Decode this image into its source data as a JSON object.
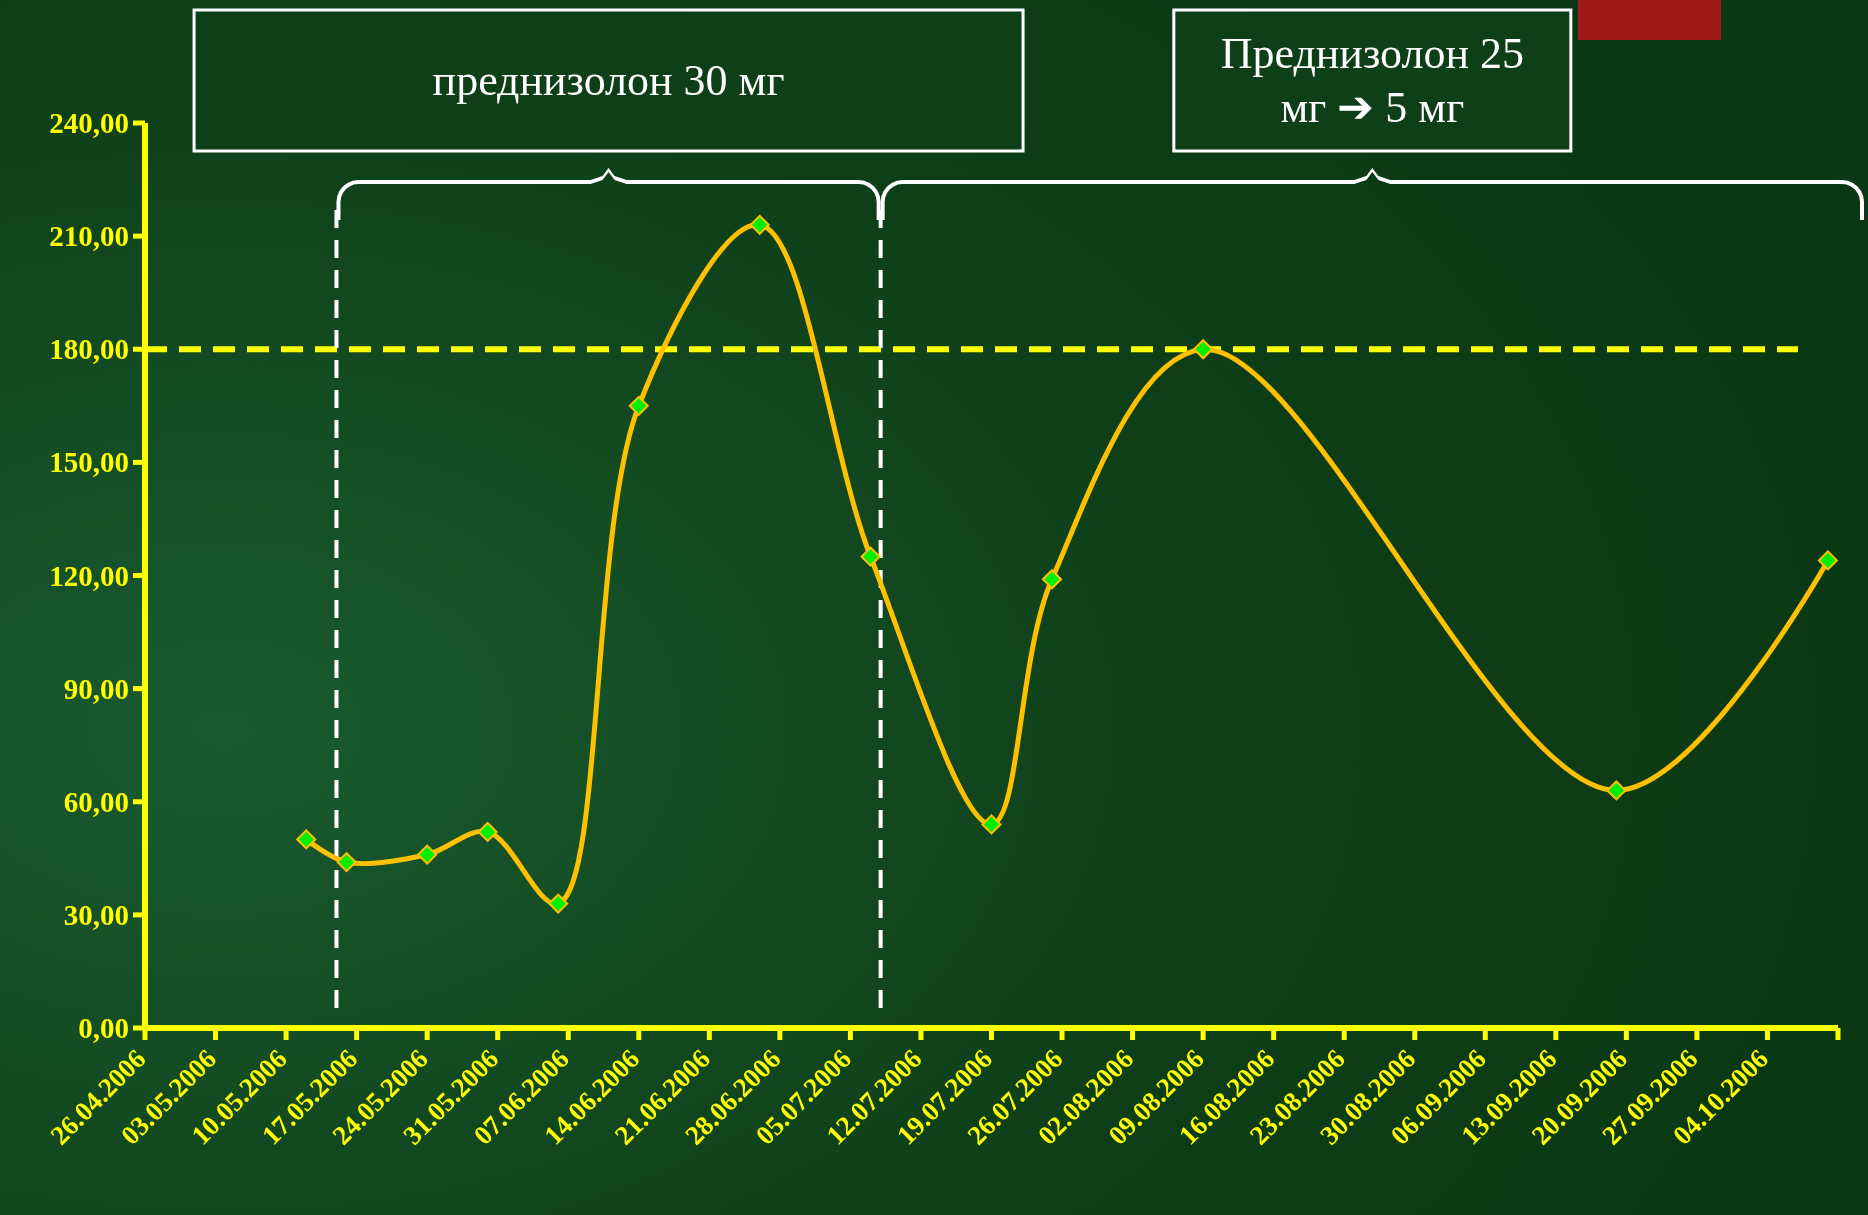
{
  "chart_data": {
    "type": "line",
    "x": [
      "2006-05-12",
      "2006-05-16",
      "2006-05-24",
      "2006-05-30",
      "2006-06-06",
      "2006-06-14",
      "2006-06-26",
      "2006-07-07",
      "2006-07-19",
      "2006-07-25",
      "2006-08-09",
      "2006-09-19",
      "2006-10-10"
    ],
    "series": [
      {
        "color": "#ffc000",
        "values": [
          50,
          44,
          46,
          52,
          33,
          165,
          213,
          125,
          54,
          119,
          180,
          63,
          124
        ]
      }
    ],
    "xlim": [
      "2006-04-26",
      "2006-10-11"
    ],
    "xticks": [
      {
        "value": "2006-04-26",
        "label": "26.04.2006"
      },
      {
        "value": "2006-05-03",
        "label": "03.05.2006"
      },
      {
        "value": "2006-05-10",
        "label": "10.05.2006"
      },
      {
        "value": "2006-05-17",
        "label": "17.05.2006"
      },
      {
        "value": "2006-05-24",
        "label": "24.05.2006"
      },
      {
        "value": "2006-05-31",
        "label": "31.05.2006"
      },
      {
        "value": "2006-06-07",
        "label": "07.06.2006"
      },
      {
        "value": "2006-06-14",
        "label": "14.06.2006"
      },
      {
        "value": "2006-06-21",
        "label": "21.06.2006"
      },
      {
        "value": "2006-06-28",
        "label": "28.06.2006"
      },
      {
        "value": "2006-07-05",
        "label": "05.07.2006"
      },
      {
        "value": "2006-07-12",
        "label": "12.07.2006"
      },
      {
        "value": "2006-07-19",
        "label": "19.07.2006"
      },
      {
        "value": "2006-07-26",
        "label": "26.07.2006"
      },
      {
        "value": "2006-08-02",
        "label": "02.08.2006"
      },
      {
        "value": "2006-08-09",
        "label": "09.08.2006"
      },
      {
        "value": "2006-08-16",
        "label": "16.08.2006"
      },
      {
        "value": "2006-08-23",
        "label": "23.08.2006"
      },
      {
        "value": "2006-08-30",
        "label": "30.08.2006"
      },
      {
        "value": "2006-09-06",
        "label": "06.09.2006"
      },
      {
        "value": "2006-09-13",
        "label": "13.09.2006"
      },
      {
        "value": "2006-09-20",
        "label": "20.09.2006"
      },
      {
        "value": "2006-09-27",
        "label": "27.09.2006"
      },
      {
        "value": "2006-10-04",
        "label": "04.10.2006"
      },
      {
        "value": "2006-10-11",
        "label": null
      }
    ],
    "ylim": [
      0,
      240
    ],
    "yticks": [
      {
        "value": 0,
        "label": "0,00"
      },
      {
        "value": 30,
        "label": "30,00"
      },
      {
        "value": 60,
        "label": "60,00"
      },
      {
        "value": 90,
        "label": "90,00"
      },
      {
        "value": 120,
        "label": "120,00"
      },
      {
        "value": 150,
        "label": "150,00"
      },
      {
        "value": 180,
        "label": "180,00"
      },
      {
        "value": 210,
        "label": "210,00"
      },
      {
        "value": 240,
        "label": "240,00"
      }
    ],
    "ref_lines": [
      {
        "axis": "y",
        "value": 180,
        "color": "#ffff00",
        "line_style": "dashed"
      },
      {
        "axis": "x",
        "value": "2006-05-15",
        "color": "#ffffff",
        "line_style": "dashed"
      },
      {
        "axis": "x",
        "value": "2006-07-08",
        "color": "#ffffff",
        "line_style": "dashed"
      }
    ],
    "annotations": [
      "преднизолон 30 мг",
      "Преднизолон 25 мг ➔ 5 мг"
    ],
    "marker": "diamond",
    "line_style": "solid",
    "grid": false
  }
}
